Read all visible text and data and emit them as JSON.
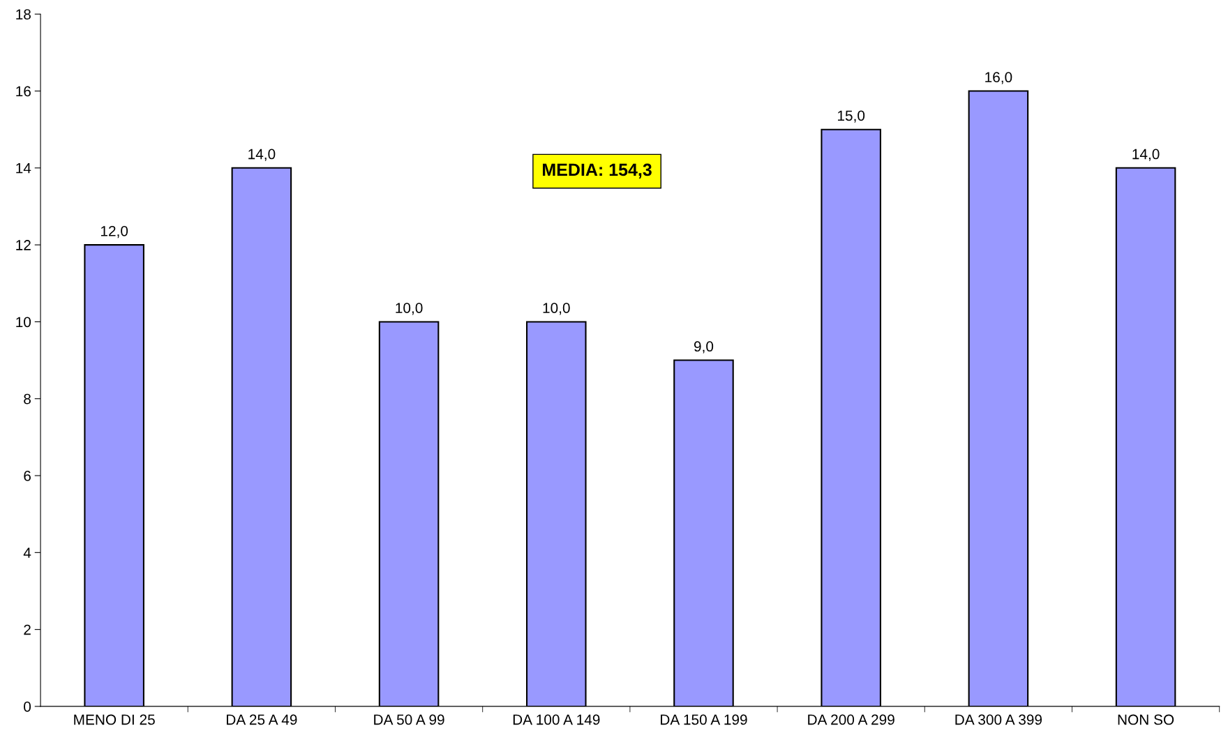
{
  "chart_data": {
    "type": "bar",
    "categories": [
      "MENO DI 25",
      "DA 25 A 49",
      "DA 50 A 99",
      "DA 100 A 149",
      "DA 150 A 199",
      "DA 200 A 299",
      "DA 300 A 399",
      "NON SO"
    ],
    "values": [
      12,
      14,
      10,
      10,
      9,
      15,
      16,
      14
    ],
    "value_labels": [
      "12,0",
      "14,0",
      "10,0",
      "10,0",
      "9,0",
      "15,0",
      "16,0",
      "14,0"
    ],
    "color": "#9999ff",
    "ylim": [
      0,
      18
    ],
    "yticks": [
      0,
      2,
      4,
      6,
      8,
      10,
      12,
      14,
      16,
      18
    ],
    "grid": false,
    "legend": false,
    "annotations": [
      "MEDIA: 154,3"
    ]
  }
}
